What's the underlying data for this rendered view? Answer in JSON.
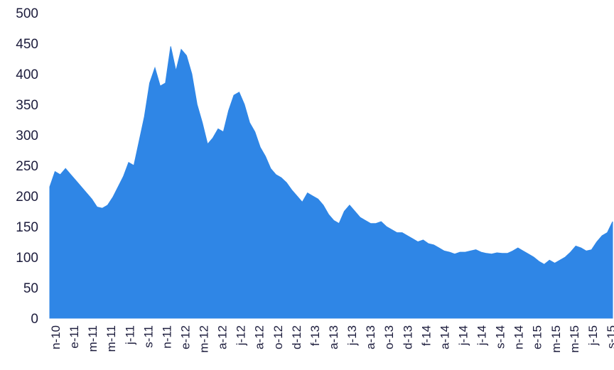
{
  "chart_data": {
    "type": "area",
    "title": "",
    "xlabel": "",
    "ylabel": "",
    "ylim": [
      0,
      500
    ],
    "yticks": [
      0,
      50,
      100,
      150,
      200,
      250,
      300,
      350,
      400,
      450,
      500
    ],
    "grid": false,
    "legend": "none",
    "fill_color": "#2f86e6",
    "x_tick_labels": [
      "n-10",
      "e-11",
      "m-11",
      "m-11",
      "j-11",
      "s-11",
      "n-11",
      "e-12",
      "m-12",
      "a-12",
      "j-12",
      "a-12",
      "o-12",
      "d-12",
      "f-13",
      "a-13",
      "j-13",
      "a-13",
      "o-13",
      "d-13",
      "f-14",
      "a-14",
      "j-14",
      "j-14",
      "s-14",
      "n-14",
      "e-15",
      "m-15",
      "m-15",
      "j-15",
      "s-15"
    ],
    "series": [
      {
        "values": [
          215,
          240,
          235,
          245,
          235,
          225,
          215,
          205,
          195,
          182,
          180,
          185,
          198,
          215,
          232,
          255,
          250,
          290,
          330,
          385,
          410,
          380,
          385,
          445,
          405,
          440,
          430,
          400,
          350,
          320,
          285,
          295,
          310,
          305,
          340,
          365,
          370,
          350,
          320,
          305,
          280,
          265,
          245,
          235,
          230,
          222,
          210,
          200,
          190,
          205,
          200,
          195,
          185,
          170,
          160,
          155,
          175,
          185,
          175,
          165,
          160,
          155,
          155,
          158,
          150,
          145,
          140,
          140,
          135,
          130,
          125,
          128,
          122,
          120,
          115,
          110,
          108,
          105,
          108,
          108,
          110,
          112,
          108,
          106,
          105,
          107,
          106,
          106,
          110,
          115,
          110,
          105,
          100,
          93,
          88,
          95,
          90,
          95,
          100,
          108,
          118,
          115,
          110,
          112,
          125,
          135,
          140,
          158
        ]
      }
    ]
  }
}
